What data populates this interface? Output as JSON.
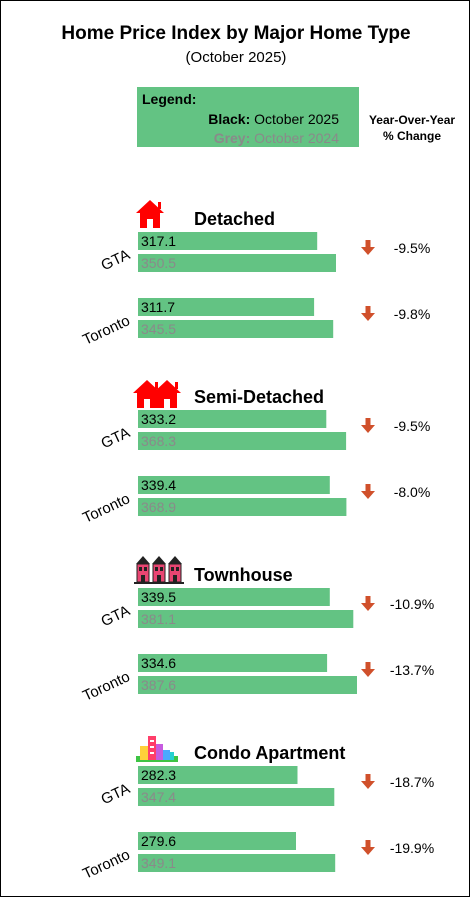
{
  "chart_data": {
    "type": "bar",
    "title": "Home Price Index by Major Home Type",
    "subtitle": "(October 2025)",
    "legend": {
      "title": "Legend:",
      "black_label": "Black:",
      "black_text": "October 2025",
      "grey_label": "Grey:",
      "grey_text": "October 2024"
    },
    "yoy_header_line1": "Year-Over-Year",
    "yoy_header_line2": "% Change",
    "colors": {
      "bar": "#63c383",
      "current_text": "#000000",
      "previous_text": "#8a8a8a",
      "arrow": "#d0502b",
      "icon_red": "#ff0000"
    },
    "groups": [
      {
        "name": "Detached",
        "icon": "house-icon",
        "rows": [
          {
            "region": "GTA",
            "current": 317.1,
            "previous": 350.5,
            "change": "-9.5%"
          },
          {
            "region": "Toronto",
            "current": 311.7,
            "previous": 345.5,
            "change": "-9.8%"
          }
        ]
      },
      {
        "name": "Semi-Detached",
        "icon": "semi-detached-houses-icon",
        "rows": [
          {
            "region": "GTA",
            "current": 333.2,
            "previous": 368.3,
            "change": "-9.5%"
          },
          {
            "region": "Toronto",
            "current": 339.4,
            "previous": 368.9,
            "change": "-8.0%"
          }
        ]
      },
      {
        "name": "Townhouse",
        "icon": "townhouse-icon",
        "rows": [
          {
            "region": "GTA",
            "current": 339.5,
            "previous": 381.1,
            "change": "-10.9%"
          },
          {
            "region": "Toronto",
            "current": 334.6,
            "previous": 387.6,
            "change": "-13.7%"
          }
        ]
      },
      {
        "name": "Condo Apartment",
        "icon": "condo-buildings-icon",
        "rows": [
          {
            "region": "GTA",
            "current": 282.3,
            "previous": 347.4,
            "change": "-18.7%"
          },
          {
            "region": "Toronto",
            "current": 279.6,
            "previous": 349.1,
            "change": "-19.9%"
          }
        ]
      }
    ]
  }
}
